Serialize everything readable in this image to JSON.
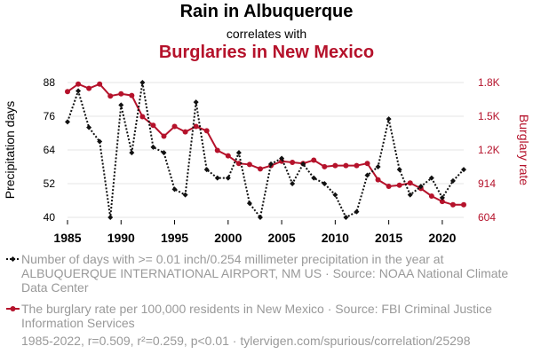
{
  "titles": {
    "line1": "Rain in Albuquerque",
    "line2": "correlates with",
    "line3": "Burglaries in New Mexico"
  },
  "colors": {
    "series1": "#111111",
    "series2": "#b5122b",
    "grid": "#e6e6e6",
    "note": "#999999"
  },
  "chart_data": {
    "type": "line",
    "x": [
      1985,
      1986,
      1987,
      1988,
      1989,
      1990,
      1991,
      1992,
      1993,
      1994,
      1995,
      1996,
      1997,
      1998,
      1999,
      2000,
      2001,
      2002,
      2003,
      2004,
      2005,
      2006,
      2007,
      2008,
      2009,
      2010,
      2011,
      2012,
      2013,
      2014,
      2015,
      2016,
      2017,
      2018,
      2019,
      2020,
      2021,
      2022
    ],
    "xticks": [
      "1985",
      "1990",
      "1995",
      "2000",
      "2005",
      "2010",
      "2015",
      "2020"
    ],
    "xlim": [
      1985,
      2022
    ],
    "series": [
      {
        "axis": "left",
        "values": [
          74,
          85,
          72,
          67,
          40,
          80,
          63,
          88,
          65,
          63,
          50,
          48,
          81,
          57,
          54,
          54,
          63,
          45,
          40,
          59,
          61,
          52,
          59,
          54,
          52,
          48,
          40,
          42,
          55,
          58,
          75,
          57,
          48,
          51,
          54,
          47,
          53,
          57
        ],
        "style": "dotted-diamond"
      },
      {
        "axis": "right",
        "values": [
          1760,
          1830,
          1790,
          1830,
          1720,
          1740,
          1725,
          1530,
          1450,
          1350,
          1440,
          1390,
          1440,
          1400,
          1220,
          1170,
          1100,
          1090,
          1050,
          1080,
          1120,
          1110,
          1100,
          1130,
          1070,
          1080,
          1080,
          1080,
          1100,
          950,
          890,
          900,
          920,
          870,
          800,
          750,
          720,
          720
        ]
      }
    ],
    "y_left": {
      "label": "Precipitation days",
      "ticks": [
        "40",
        "52",
        "64",
        "76",
        "88"
      ],
      "lim": [
        40,
        88
      ]
    },
    "y_right": {
      "label": "Burglary rate",
      "ticks": [
        "604",
        "914",
        "1.2K",
        "1.5K",
        "1.8K"
      ],
      "tick_values": [
        604,
        914,
        1224,
        1534,
        1844
      ],
      "lim": [
        604,
        1844
      ]
    },
    "grid": "horizontal",
    "legend": [
      {
        "text": "Number of days with >= 0.01 inch/0.254 millimeter precipitation in the year at ALBUQUERQUE INTERNATIONAL AIRPORT, NM US · Source: NOAA National Climate Data Center"
      },
      {
        "text": "The burglary rate per 100,000 residents in New Mexico · Source: FBI Criminal Justice Information Services"
      }
    ],
    "footer": "1985-2022, r=0.509, r²=0.259, p<0.01 · tylervigen.com/spurious/correlation/25298"
  }
}
